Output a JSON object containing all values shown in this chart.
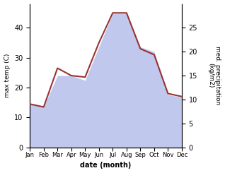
{
  "months": [
    "Jan",
    "Feb",
    "Mar",
    "Apr",
    "May",
    "Jun",
    "Jul",
    "Aug",
    "Sep",
    "Oct",
    "Nov",
    "Dec"
  ],
  "temperature": [
    14.5,
    13.5,
    26.5,
    24,
    23.5,
    35,
    45,
    45,
    33,
    31,
    18,
    17
  ],
  "precipitation": [
    9,
    8.5,
    15,
    15,
    14,
    21,
    28,
    28,
    21,
    20,
    11,
    10.5
  ],
  "temp_color": "#993333",
  "precip_color_fill": "#c0c8ee",
  "temp_ylim": [
    0,
    48
  ],
  "precip_ylim": [
    0,
    30
  ],
  "temp_yticks": [
    0,
    10,
    20,
    30,
    40
  ],
  "precip_yticks": [
    0,
    5,
    10,
    15,
    20,
    25
  ],
  "xlabel": "date (month)",
  "ylabel_left": "max temp (C)",
  "ylabel_right": "med. precipitation\n(kg/m2)",
  "bg_color": "#ffffff"
}
